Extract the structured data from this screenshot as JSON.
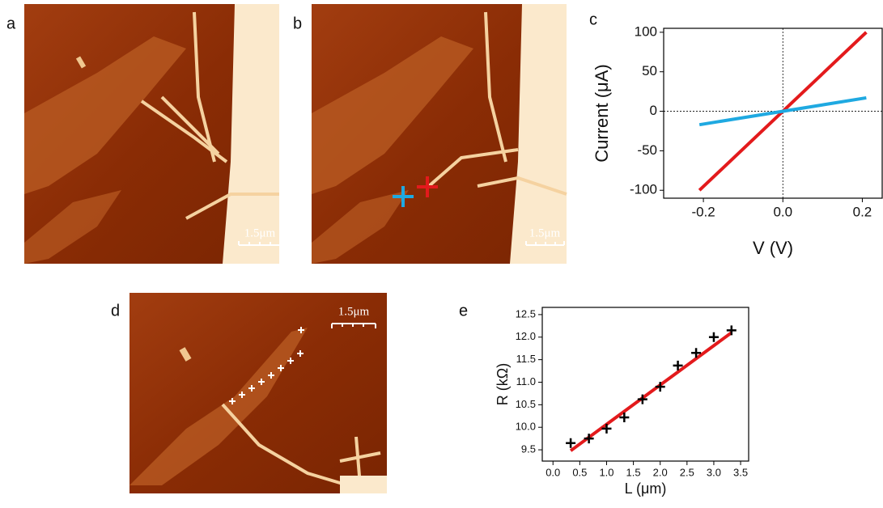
{
  "panels": [
    {
      "label": "a",
      "scale_bar": "1.5μm"
    },
    {
      "label": "b",
      "scale_bar": "1.5μm"
    },
    {
      "label": "d",
      "scale_bar": "1.5μm"
    }
  ],
  "chart_data": [
    {
      "type": "line",
      "label": "c",
      "xlabel": "V (V)",
      "ylabel": "Current (μA)",
      "xlim": [
        -0.3,
        0.25
      ],
      "xticks": [
        -0.2,
        {
          "value": 0,
          "label": "0.0"
        },
        0.2
      ],
      "ylim": [
        -110,
        105
      ],
      "yticks": [
        -100,
        -50,
        0,
        50,
        100
      ],
      "zero_lines": true,
      "series": [
        {
          "color": "#e31a1c",
          "x": [
            -0.21,
            0.21
          ],
          "values": [
            -100,
            100
          ]
        },
        {
          "color": "#1fa9e1",
          "x": [
            -0.21,
            0.21
          ],
          "values": [
            -17,
            17
          ]
        }
      ]
    },
    {
      "type": "scatter",
      "label": "e",
      "xlabel": "L (μm)",
      "ylabel": "R (kΩ)",
      "xlim": [
        -0.2,
        3.65
      ],
      "xticks": [
        {
          "value": 0,
          "label": "0.0"
        },
        0.5,
        {
          "value": 1,
          "label": "1.0"
        },
        1.5,
        {
          "value": 2,
          "label": "2.0"
        },
        2.5,
        {
          "value": 3,
          "label": "3.0"
        },
        3.5
      ],
      "ylim": [
        9.25,
        12.66
      ],
      "yticks": [
        9.5,
        {
          "value": 10,
          "label": "10.0"
        },
        10.5,
        {
          "value": 11,
          "label": "11.0"
        },
        11.5,
        {
          "value": 12,
          "label": "12.0"
        },
        12.5
      ],
      "series": [
        {
          "color": "#e31a1c",
          "style": "line",
          "x": [
            0.33,
            3.33
          ],
          "values": [
            9.48,
            12.1
          ]
        },
        {
          "color": "#000000",
          "style": "markers",
          "x": [
            0.33,
            0.67,
            1.0,
            1.33,
            1.67,
            2.0,
            2.33,
            2.67,
            3.0,
            3.33
          ],
          "values": [
            9.65,
            9.75,
            9.97,
            10.22,
            10.62,
            10.9,
            11.37,
            11.65,
            12.0,
            12.15
          ]
        }
      ]
    }
  ]
}
